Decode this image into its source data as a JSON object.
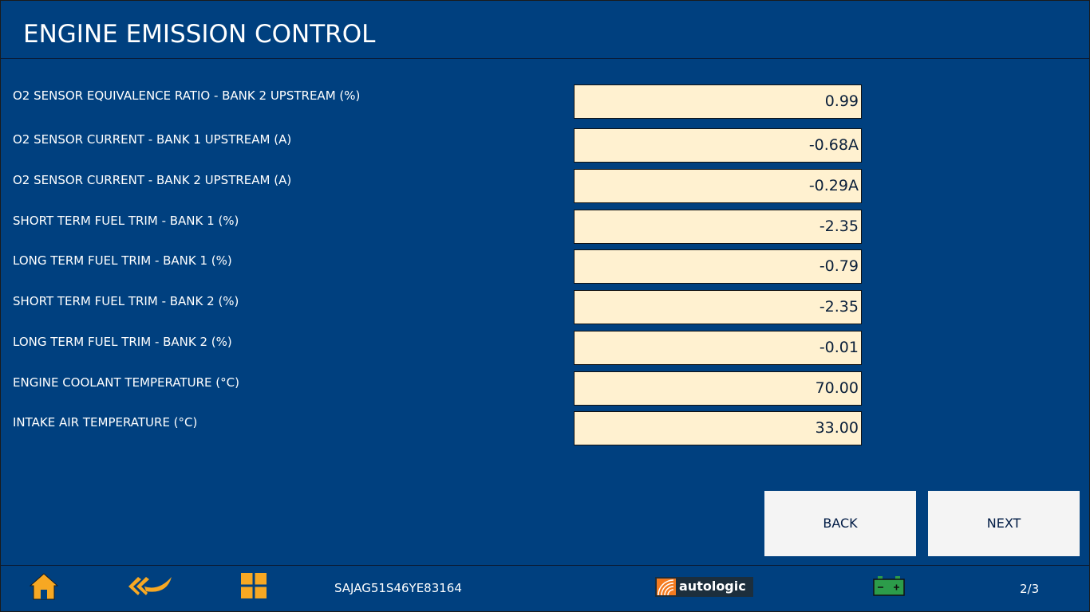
{
  "header": {
    "title": "ENGINE EMISSION CONTROL"
  },
  "rows": [
    {
      "label": "O2 SENSOR EQUIVALENCE RATIO - BANK 2 UPSTREAM (%)",
      "value": "0.99"
    },
    {
      "label": "O2 SENSOR CURRENT - BANK 1 UPSTREAM (A)",
      "value": "-0.68A"
    },
    {
      "label": "O2 SENSOR CURRENT - BANK 2 UPSTREAM (A)",
      "value": "-0.29A"
    },
    {
      "label": "SHORT TERM FUEL TRIM - BANK 1 (%)",
      "value": "-2.35"
    },
    {
      "label": "LONG TERM FUEL TRIM - BANK 1 (%)",
      "value": "-0.79"
    },
    {
      "label": "SHORT TERM FUEL TRIM - BANK 2 (%)",
      "value": "-2.35"
    },
    {
      "label": "LONG TERM FUEL TRIM - BANK 2 (%)",
      "value": "-0.01"
    },
    {
      "label": "ENGINE COOLANT TEMPERATURE (°C)",
      "value": "70.00"
    },
    {
      "label": "INTAKE AIR TEMPERATURE (°C)",
      "value": "33.00"
    }
  ],
  "buttons": {
    "back": "BACK",
    "next": "NEXT"
  },
  "footer": {
    "vin": "SAJAG51S46YE83164",
    "logo": "autologic",
    "page": "2/3"
  }
}
